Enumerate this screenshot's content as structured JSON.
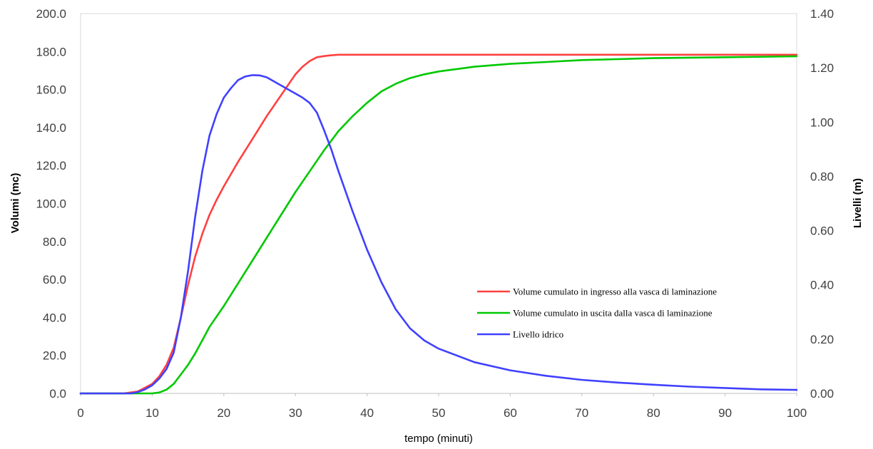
{
  "chart_data": {
    "type": "line",
    "title": "",
    "xlabel": "tempo (minuti)",
    "ylabel": "Volumi (mc)",
    "y2label": "Livelli (m)",
    "xlim": [
      0,
      100
    ],
    "ylim": [
      0,
      200
    ],
    "y2lim": [
      0,
      1.4
    ],
    "x_ticks": [
      "0",
      "10",
      "20",
      "30",
      "40",
      "50",
      "60",
      "70",
      "80",
      "90",
      "100"
    ],
    "y_ticks": [
      "0.0",
      "20.0",
      "40.0",
      "60.0",
      "80.0",
      "100.0",
      "120.0",
      "140.0",
      "160.0",
      "180.0",
      "200.0"
    ],
    "y2_ticks": [
      "0.00",
      "0.20",
      "0.40",
      "0.60",
      "0.80",
      "1.00",
      "1.20",
      "1.40"
    ],
    "grid": false,
    "legend_position": "center-right",
    "series": [
      {
        "name": "Volume cumulato in ingresso alla vasca di laminazione",
        "color": "#ff4040",
        "axis": "left",
        "x": [
          0,
          6,
          8,
          10,
          11,
          12,
          13,
          14,
          15,
          16,
          17,
          18,
          19,
          20,
          22,
          24,
          26,
          28,
          30,
          31,
          32,
          33,
          34,
          35,
          36,
          40,
          50,
          60,
          70,
          80,
          90,
          100
        ],
        "values": [
          0,
          0,
          1,
          5,
          9,
          15,
          24,
          40,
          57,
          72,
          84,
          94,
          102,
          109,
          122,
          134,
          146,
          157,
          168,
          172,
          175,
          177,
          177.6,
          178,
          178.3,
          178.3,
          178.3,
          178.3,
          178.3,
          178.3,
          178.3,
          178.3
        ]
      },
      {
        "name": "Volume cumulato in uscita dalla vasca di laminazione",
        "color": "#00c800",
        "axis": "left",
        "x": [
          0,
          10,
          11,
          12,
          13,
          14,
          15,
          16,
          17,
          18,
          20,
          22,
          24,
          26,
          28,
          30,
          32,
          34,
          36,
          38,
          40,
          42,
          44,
          46,
          48,
          50,
          55,
          60,
          65,
          70,
          75,
          80,
          90,
          100
        ],
        "values": [
          0,
          0,
          0.5,
          2,
          5,
          10,
          15,
          21,
          28,
          35,
          46,
          58,
          70,
          82,
          94,
          106,
          117,
          128,
          138,
          146,
          153,
          159,
          163,
          166,
          168,
          169.5,
          172,
          173.5,
          174.5,
          175.5,
          176,
          176.5,
          177,
          177.5
        ]
      },
      {
        "name": "Livello idrico",
        "color": "#4040ff",
        "axis": "right",
        "x": [
          0,
          7,
          8,
          9,
          10,
          11,
          12,
          13,
          14,
          15,
          16,
          17,
          18,
          19,
          20,
          21,
          22,
          23,
          24,
          25,
          26,
          27,
          28,
          29,
          30,
          31,
          32,
          33,
          34,
          35,
          36,
          38,
          40,
          42,
          44,
          46,
          48,
          50,
          55,
          60,
          65,
          70,
          75,
          80,
          85,
          90,
          95,
          100
        ],
        "values": [
          0,
          0,
          0.005,
          0.015,
          0.03,
          0.055,
          0.09,
          0.15,
          0.28,
          0.45,
          0.65,
          0.82,
          0.95,
          1.03,
          1.09,
          1.125,
          1.155,
          1.168,
          1.173,
          1.172,
          1.165,
          1.15,
          1.135,
          1.12,
          1.105,
          1.09,
          1.07,
          1.035,
          0.97,
          0.9,
          0.82,
          0.67,
          0.53,
          0.41,
          0.31,
          0.24,
          0.195,
          0.165,
          0.115,
          0.085,
          0.065,
          0.05,
          0.04,
          0.032,
          0.025,
          0.02,
          0.015,
          0.013
        ]
      }
    ]
  }
}
